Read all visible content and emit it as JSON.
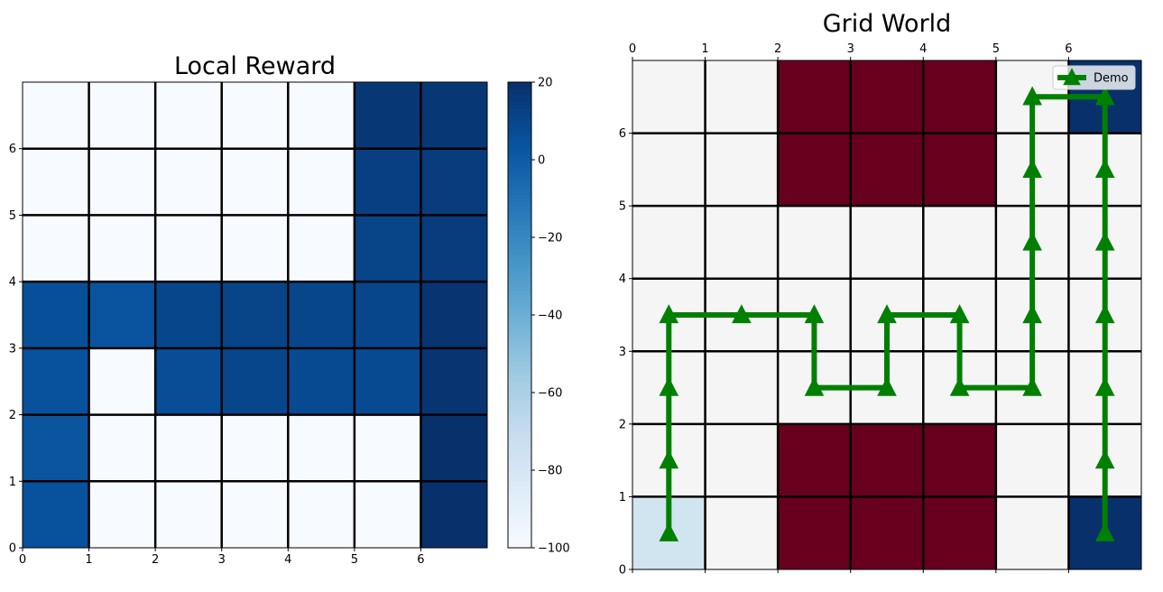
{
  "chart_data": [
    {
      "type": "heatmap",
      "title": "Local Reward",
      "xlabel": "",
      "ylabel": "",
      "xlim": [
        0,
        7
      ],
      "ylim": [
        0,
        7
      ],
      "x_ticks": [
        "0",
        "1",
        "2",
        "3",
        "4",
        "5",
        "6"
      ],
      "y_ticks": [
        "0",
        "1",
        "2",
        "3",
        "4",
        "5",
        "6"
      ],
      "colormap": "Blues",
      "colorbar": {
        "min": -100,
        "max": 20,
        "ticks": [
          "20",
          "0",
          "−20",
          "−40",
          "−60",
          "−80",
          "−100"
        ]
      },
      "rows_top_to_bottom": [
        [
          -100,
          -100,
          -100,
          -100,
          -100,
          17,
          17
        ],
        [
          -100,
          -100,
          -100,
          -100,
          -100,
          13,
          15
        ],
        [
          -100,
          -100,
          -100,
          -100,
          -100,
          11,
          15
        ],
        [
          6,
          4,
          10,
          11,
          10,
          10,
          18
        ],
        [
          5,
          -100,
          7,
          10,
          8,
          8,
          18
        ],
        [
          3,
          -100,
          -100,
          -100,
          -100,
          -100,
          20
        ],
        [
          5,
          -100,
          -100,
          -100,
          -100,
          -100,
          20
        ]
      ],
      "grid": true
    },
    {
      "type": "grid",
      "title": "Grid World",
      "xlim": [
        0,
        7
      ],
      "ylim": [
        0,
        7
      ],
      "x_ticks": [
        "0",
        "1",
        "2",
        "3",
        "4",
        "5",
        "6"
      ],
      "y_ticks": [
        "0",
        "1",
        "2",
        "3",
        "4",
        "5",
        "6"
      ],
      "x_axis_position": "top",
      "colors": {
        "empty": "#f5f5f5",
        "obstacle": "#67001f",
        "goal": "#08306b",
        "start": "#d1e5f0",
        "path": "#008000"
      },
      "cells_top_to_bottom": [
        [
          "empty",
          "empty",
          "obstacle",
          "obstacle",
          "obstacle",
          "empty",
          "goal"
        ],
        [
          "empty",
          "empty",
          "obstacle",
          "obstacle",
          "obstacle",
          "empty",
          "empty"
        ],
        [
          "empty",
          "empty",
          "empty",
          "empty",
          "empty",
          "empty",
          "empty"
        ],
        [
          "empty",
          "empty",
          "empty",
          "empty",
          "empty",
          "empty",
          "empty"
        ],
        [
          "empty",
          "empty",
          "empty",
          "empty",
          "empty",
          "empty",
          "empty"
        ],
        [
          "empty",
          "empty",
          "obstacle",
          "obstacle",
          "obstacle",
          "empty",
          "empty"
        ],
        [
          "start",
          "empty",
          "obstacle",
          "obstacle",
          "obstacle",
          "empty",
          "goal"
        ]
      ],
      "series": [
        {
          "name": "Demo",
          "x": [
            0.5,
            0.5,
            0.5,
            0.5,
            1.5,
            2.5,
            2.5,
            3.5,
            3.5,
            4.5,
            4.5,
            5.5,
            5.5,
            5.5,
            5.5,
            5.5,
            6.5,
            6.5,
            6.5,
            6.5,
            6.5,
            6.5,
            6.5
          ],
          "y": [
            0.5,
            1.5,
            2.5,
            3.5,
            3.5,
            3.5,
            2.5,
            2.5,
            3.5,
            3.5,
            2.5,
            2.5,
            3.5,
            4.5,
            5.5,
            6.5,
            6.5,
            5.5,
            4.5,
            3.5,
            2.5,
            1.5,
            0.5
          ],
          "marker": "triangle-up"
        }
      ],
      "legend": {
        "position": "top-right",
        "entries": [
          "Demo"
        ]
      }
    }
  ]
}
